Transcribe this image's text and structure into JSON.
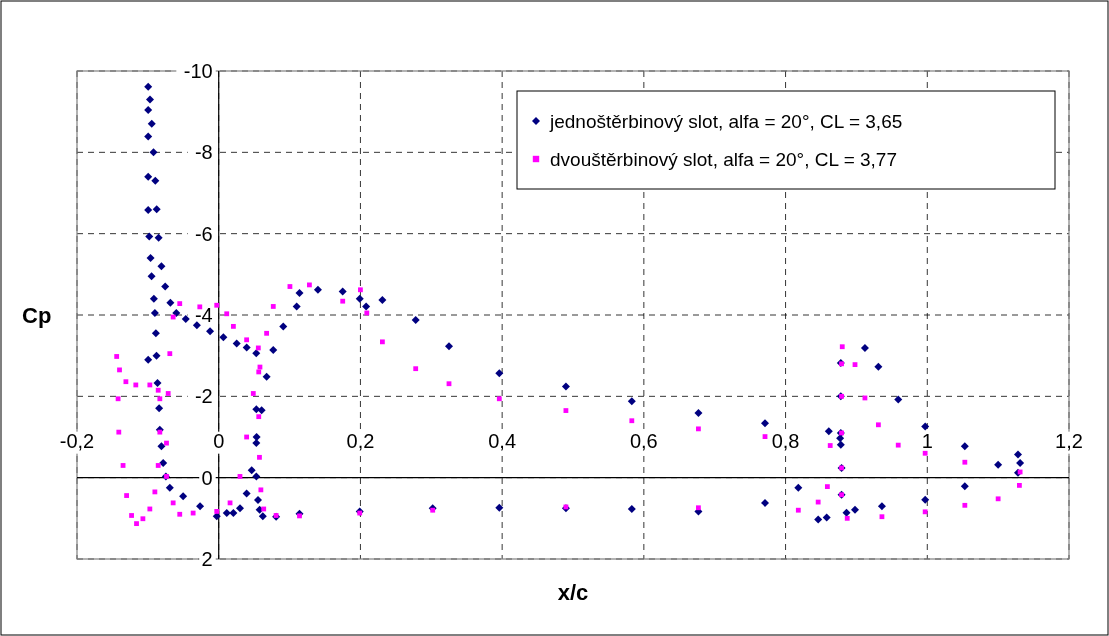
{
  "chart_data": {
    "type": "scatter",
    "xlabel": "x/c",
    "ylabel": "Cp",
    "xlim": [
      -0.2,
      1.2
    ],
    "ylim": [
      2,
      -10
    ],
    "xticks": [
      {
        "value": -0.2,
        "label": "-0,2"
      },
      0,
      {
        "value": 0.2,
        "label": "0,2"
      },
      {
        "value": 0.4,
        "label": "0,4"
      },
      {
        "value": 0.6,
        "label": "0,6"
      },
      {
        "value": 0.8,
        "label": "0,8"
      },
      1,
      {
        "value": 1.2,
        "label": "1,2"
      }
    ],
    "yticks": [
      -10,
      -8,
      -6,
      -4,
      -2,
      0,
      2
    ],
    "grid": true,
    "legend": "top right",
    "series": [
      {
        "name": "jednoštěrbinový slot, alfa = 20°, CL = 3,65",
        "color": "#000080",
        "marker": "diamond",
        "x": [
          -0.0995,
          -0.0995,
          -0.0995,
          -0.0995,
          -0.0995,
          -0.098,
          -0.0962,
          -0.0948,
          -0.0915,
          -0.0901,
          -0.0887,
          -0.0878,
          -0.0864,
          -0.0841,
          -0.0831,
          -0.0808,
          -0.0784,
          -0.0746,
          -0.069,
          -0.0502,
          -0.0263,
          -0.0028,
          0.0113,
          0.0207,
          0.03,
          0.0394,
          0.0465,
          0.0535,
          0.0606,
          0.0676,
          0.077,
          0.0911,
          0.11,
          0.114,
          0.14,
          0.175,
          0.199,
          0.208,
          0.231,
          0.278,
          0.325,
          0.396,
          0.49,
          0.583,
          0.677,
          0.771,
          0.861,
          0.877,
          0.878,
          0.878,
          0.878,
          0.878,
          0.879,
          0.879,
          0.898,
          0.912,
          0.931,
          0.959,
          0.997,
          1.053,
          1.128,
          1.131,
          1.128,
          1.1,
          1.053,
          0.997,
          0.936,
          0.886,
          0.858,
          0.846,
          0.818,
          0.771,
          0.677,
          0.583,
          0.49,
          0.396,
          0.302,
          0.199,
          0.114,
          0.081,
          0.0622,
          0.0577,
          0.0554,
          0.0531,
          0.0531,
          0.0531,
          -0.0995,
          -0.097,
          -0.0945,
          -0.092,
          -0.0895,
          -0.0875,
          -0.0848,
          -0.0808,
          -0.0755,
          -0.0682,
          -0.0598,
          -0.0465,
          -0.0308,
          -0.0122,
          0.0066,
          0.0254,
          0.0395,
          0.053
        ],
        "values": [
          -9.61,
          -9.04,
          -8.39,
          -7.4,
          -6.58,
          -5.93,
          -5.4,
          -4.95,
          -4.4,
          -4.05,
          -3.55,
          -3.0,
          -2.33,
          -1.71,
          -1.18,
          -0.77,
          -0.36,
          -0.03,
          0.25,
          0.46,
          0.7,
          0.95,
          0.87,
          0.87,
          0.75,
          0.39,
          -0.18,
          -1.0,
          -1.66,
          -2.48,
          -3.14,
          -3.72,
          -4.21,
          -4.54,
          -4.62,
          -4.58,
          -4.4,
          -4.21,
          -4.37,
          -3.88,
          -3.23,
          -2.57,
          -2.24,
          -1.88,
          -1.59,
          -1.34,
          -1.14,
          -0.97,
          -0.81,
          -2.82,
          -2.0,
          -1.1,
          -0.24,
          0.42,
          0.79,
          -3.19,
          -2.73,
          -1.92,
          -1.26,
          -0.77,
          -0.57,
          -0.36,
          -0.12,
          -0.32,
          0.21,
          0.54,
          0.7,
          0.86,
          0.98,
          1.03,
          0.25,
          0.62,
          0.83,
          0.77,
          0.75,
          0.74,
          0.75,
          0.83,
          0.89,
          0.96,
          0.95,
          0.79,
          0.55,
          -0.03,
          -0.85,
          -1.68,
          -2.9,
          -9.3,
          -8.7,
          -8.0,
          -7.3,
          -6.6,
          -5.9,
          -5.2,
          -4.7,
          -4.3,
          -4.05,
          -3.9,
          -3.75,
          -3.6,
          -3.45,
          -3.3,
          -3.2,
          -3.06
        ]
      },
      {
        "name": "dvouštěrbinový slot, alfa = 20°, CL = 3,77",
        "color": "#ff00ff",
        "marker": "square",
        "x": [
          -0.144,
          -0.14,
          -0.131,
          -0.117,
          -0.0972,
          -0.0854,
          -0.142,
          -0.141,
          -0.135,
          -0.13,
          -0.123,
          -0.116,
          -0.107,
          -0.0972,
          -0.0901,
          -0.0854,
          -0.0831,
          -0.0831,
          -0.0737,
          -0.0643,
          -0.055,
          -0.0361,
          -0.0028,
          0.016,
          0.03,
          0.0394,
          0.0488,
          0.0582,
          0.0676,
          0.077,
          0.1005,
          0.128,
          0.175,
          0.2,
          0.209,
          0.231,
          0.278,
          0.325,
          0.396,
          0.49,
          0.583,
          0.677,
          0.771,
          0.863,
          0.879,
          0.879,
          0.879,
          0.879,
          0.879,
          0.88,
          0.898,
          0.912,
          0.931,
          0.959,
          0.997,
          1.053,
          1.131,
          1.13,
          1.1,
          1.053,
          0.997,
          0.936,
          0.887,
          0.859,
          0.846,
          0.818,
          0.677,
          0.49,
          0.302,
          0.199,
          0.114,
          0.081,
          0.0635,
          0.0595,
          0.0575,
          0.0565,
          0.0565,
          -0.0737,
          -0.0713,
          -0.069,
          -0.0643,
          -0.055,
          -0.0267,
          -0.0028,
          0.0113,
          0.0207,
          0.0394,
          0.0559
        ],
        "values": [
          -2.98,
          -2.65,
          -2.36,
          -2.28,
          -2.28,
          -2.15,
          -1.94,
          -1.12,
          -0.3,
          0.44,
          0.93,
          1.13,
          1.01,
          0.77,
          0.35,
          -0.3,
          -1.12,
          -1.94,
          -0.03,
          0.62,
          0.9,
          0.87,
          0.83,
          0.62,
          -0.03,
          -1.0,
          -2.07,
          -2.72,
          -3.55,
          -4.21,
          -4.7,
          -4.74,
          -4.34,
          -4.62,
          -4.05,
          -3.34,
          -2.68,
          -2.31,
          -1.94,
          -1.65,
          -1.4,
          -1.2,
          -1.01,
          -0.79,
          -2.8,
          -2.0,
          -1.1,
          -0.24,
          0.42,
          -3.22,
          -2.78,
          -1.96,
          -1.3,
          -0.8,
          -0.6,
          -0.38,
          -0.14,
          0.19,
          0.52,
          0.68,
          0.84,
          0.96,
          1.0,
          0.22,
          0.6,
          0.8,
          0.74,
          0.72,
          0.8,
          0.87,
          0.94,
          0.93,
          0.77,
          0.3,
          -0.5,
          -1.5,
          -2.6,
          -0.85,
          -2.07,
          -3.05,
          -3.95,
          -4.28,
          -4.2,
          -4.24,
          -4.03,
          -3.72,
          -3.39,
          -3.19
        ]
      }
    ]
  }
}
